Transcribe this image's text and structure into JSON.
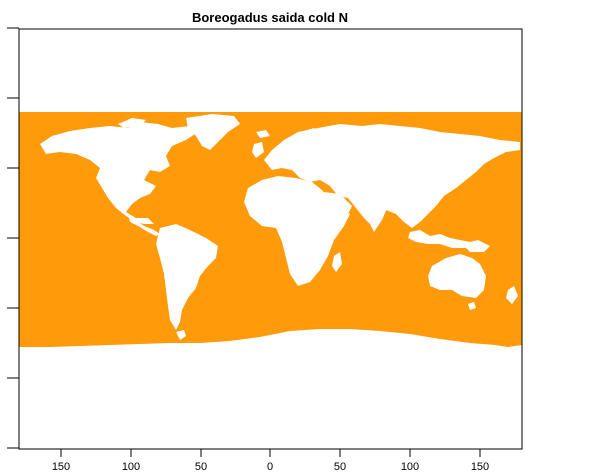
{
  "title": "Boreogadus saida cold N",
  "x_tick_labels": [
    "150",
    "100",
    "50",
    "0",
    "50",
    "100",
    "150"
  ],
  "colors": {
    "ocean_fill": "#ff9a0a",
    "land": "#ffffff",
    "background": "#ffffff",
    "frame": "#000000"
  }
}
